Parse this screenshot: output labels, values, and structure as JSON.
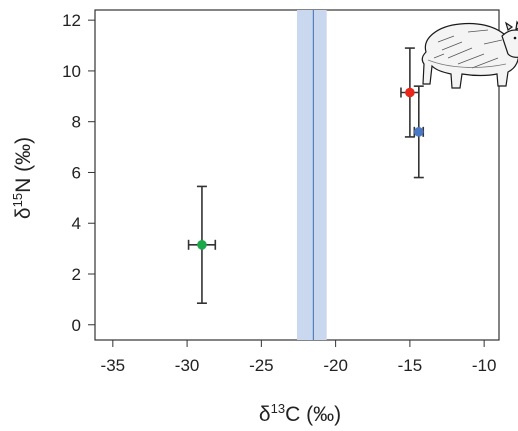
{
  "chart_data": {
    "type": "scatter",
    "xlabel": {
      "prefix": "δ",
      "superscript": "13",
      "main": "C (‰)"
    },
    "ylabel": {
      "prefix": "δ",
      "superscript": "15",
      "main": "N (‰)"
    },
    "xlim": [
      -36.2,
      -9.0
    ],
    "ylim": [
      -0.6,
      12.4
    ],
    "x_ticks": [
      -35,
      -30,
      -25,
      -20,
      -15,
      -10
    ],
    "y_ticks": [
      0,
      2,
      4,
      6,
      8,
      10,
      12
    ],
    "x_tick_labels": [
      "-35",
      "-30",
      "-25",
      "-20",
      "-15",
      "-10"
    ],
    "y_tick_labels": [
      "0",
      "2",
      "4",
      "6",
      "8",
      "10",
      "12"
    ],
    "grid": false,
    "legend": "none",
    "reference_band": {
      "center": -21.5,
      "lower": -22.6,
      "upper": -20.6,
      "fill": "#c9d8ee",
      "line": "#3f6fb5"
    },
    "series": [
      {
        "x": -29.0,
        "y": 3.15,
        "x_err": 0.9,
        "y_err_low": 2.3,
        "y_err_high": 2.3,
        "color": "#1aa84a"
      },
      {
        "x": -15.0,
        "y": 9.15,
        "x_err": 0.6,
        "y_err_low": 1.75,
        "y_err_high": 1.75,
        "color": "#e8271a"
      },
      {
        "x": -14.4,
        "y": 7.6,
        "x_err": 0.3,
        "y_err_low": 1.8,
        "y_err_high": 1.8,
        "color": "#4a78c4"
      }
    ],
    "illustration": "hippopotamus-icon"
  }
}
